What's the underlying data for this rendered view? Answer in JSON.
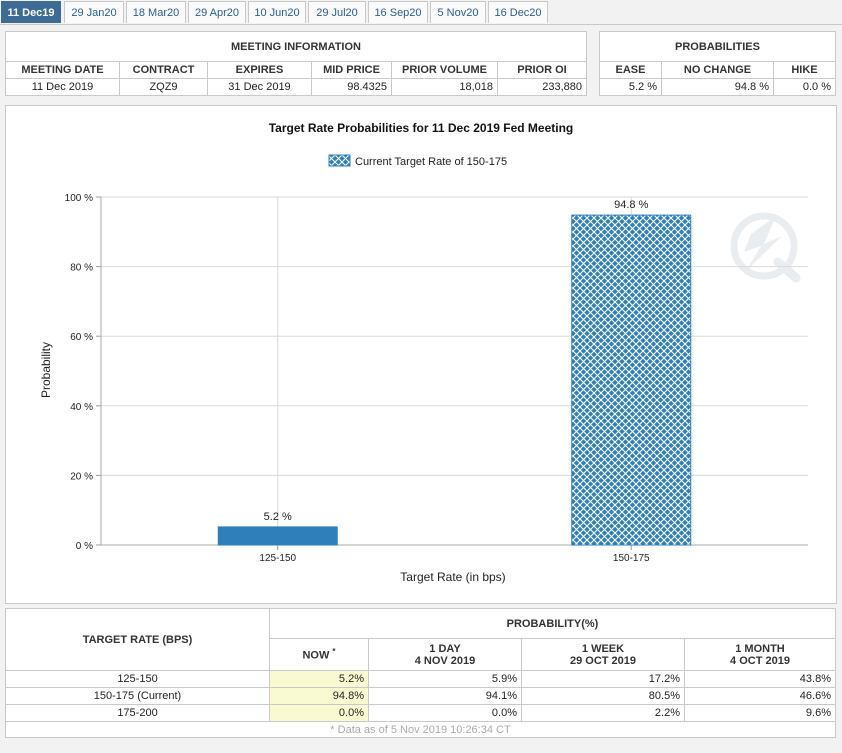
{
  "tabs": [
    "11 Dec19",
    "29 Jan20",
    "18 Mar20",
    "29 Apr20",
    "10 Jun20",
    "29 Jul20",
    "16 Sep20",
    "5 Nov20",
    "16 Dec20"
  ],
  "meeting_info": {
    "title": "MEETING INFORMATION",
    "headers": [
      "MEETING DATE",
      "CONTRACT",
      "EXPIRES",
      "MID PRICE",
      "PRIOR VOLUME",
      "PRIOR OI"
    ],
    "row": [
      "11 Dec 2019",
      "ZQZ9",
      "31 Dec 2019",
      "98.4325",
      "18,018",
      "233,880"
    ]
  },
  "probabilities": {
    "title": "PROBABILITIES",
    "headers": [
      "EASE",
      "NO CHANGE",
      "HIKE"
    ],
    "row": [
      "5.2 %",
      "94.8 %",
      "0.0 %"
    ]
  },
  "chart": {
    "title": "Target Rate Probabilities for 11 Dec 2019 Fed Meeting",
    "legend": "Current Target Rate of 150-175",
    "ylabel": "Probability",
    "xlabel": "Target Rate (in bps)",
    "yticks": [
      "0 %",
      "20 %",
      "40 %",
      "60 %",
      "80 %",
      "100 %"
    ],
    "colors": {
      "bar": "#2e7fba",
      "grid": "#d9d9d9"
    }
  },
  "chart_data": {
    "type": "bar",
    "categories": [
      "125-150",
      "150-175"
    ],
    "values": [
      5.2,
      94.8
    ],
    "data_labels": [
      "5.2 %",
      "94.8 %"
    ],
    "patterned": [
      false,
      true
    ],
    "title": "Target Rate Probabilities for 11 Dec 2019 Fed Meeting",
    "xlabel": "Target Rate (in bps)",
    "ylabel": "Probability",
    "ylim": [
      0,
      100
    ],
    "grid": true,
    "legend_position": "top"
  },
  "prob_table": {
    "rate_header": "TARGET RATE (BPS)",
    "group_header": "PROBABILITY(%)",
    "col_now": "NOW",
    "now_mark": "*",
    "cols": [
      {
        "line1": "1 DAY",
        "line2": "4 NOV 2019"
      },
      {
        "line1": "1 WEEK",
        "line2": "29 OCT 2019"
      },
      {
        "line1": "1 MONTH",
        "line2": "4 OCT 2019"
      }
    ],
    "rows": [
      {
        "rate": "125-150",
        "now": "5.2%",
        "d1": "5.9%",
        "w1": "17.2%",
        "m1": "43.8%"
      },
      {
        "rate": "150-175 (Current)",
        "now": "94.8%",
        "d1": "94.1%",
        "w1": "80.5%",
        "m1": "46.6%"
      },
      {
        "rate": "175-200",
        "now": "0.0%",
        "d1": "0.0%",
        "w1": "2.2%",
        "m1": "9.6%"
      }
    ],
    "footnote": "* Data as of 5 Nov 2019 10:26:34 CT"
  }
}
